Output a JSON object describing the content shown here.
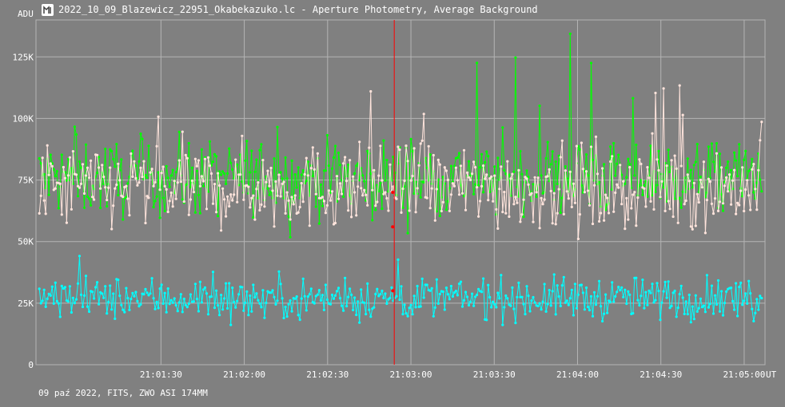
{
  "window": {
    "title": "2022_10_09_Blazewicz_22951_Okabekazuko.lc - Aperture Photometry, Average Background"
  },
  "footer": {
    "text": "09 paź 2022, FITS, ZWO ASI 174MM"
  },
  "colors": {
    "background": "#808080",
    "grid": "#b4b4b4",
    "series_green": "#00ff00",
    "series_pink": "#ffe4dc",
    "series_cyan": "#00ffff",
    "cursor": "#ff0000"
  },
  "chart_data": {
    "type": "line",
    "ylabel": "ADU",
    "xlabel": "UT",
    "ylim": [
      0,
      140000
    ],
    "xlim_seconds_after_21_01_00": [
      -25,
      150
    ],
    "y_ticks": [
      {
        "value": 0,
        "label": "0"
      },
      {
        "value": 25000,
        "label": "25K"
      },
      {
        "value": 50000,
        "label": "50K"
      },
      {
        "value": 75000,
        "label": "75K"
      },
      {
        "value": 100000,
        "label": "100K"
      },
      {
        "value": 125000,
        "label": "125K"
      }
    ],
    "x_ticks": [
      {
        "value": 5,
        "label": "21:01:30"
      },
      {
        "value": 25,
        "label": "21:02:00"
      },
      {
        "value": 45,
        "label": "21:02:30"
      },
      {
        "value": 65,
        "label": "21:03:00"
      },
      {
        "value": 85,
        "label": "21:03:30"
      },
      {
        "value": 105,
        "label": "21:04:00"
      },
      {
        "value": 125,
        "label": "21:04:30"
      },
      {
        "value": 145,
        "label": "21:05:00"
      }
    ],
    "cursor_x": 61,
    "grid": true,
    "series": [
      {
        "key": "green",
        "mean": 76000,
        "noise": 11000,
        "spike_max": 140000
      },
      {
        "key": "pink",
        "mean": 72000,
        "noise": 12000,
        "spike_max": 130000
      },
      {
        "key": "cyan",
        "mean": 27000,
        "noise": 6000,
        "spike_max": 45000
      }
    ],
    "points_per_series": 450
  }
}
